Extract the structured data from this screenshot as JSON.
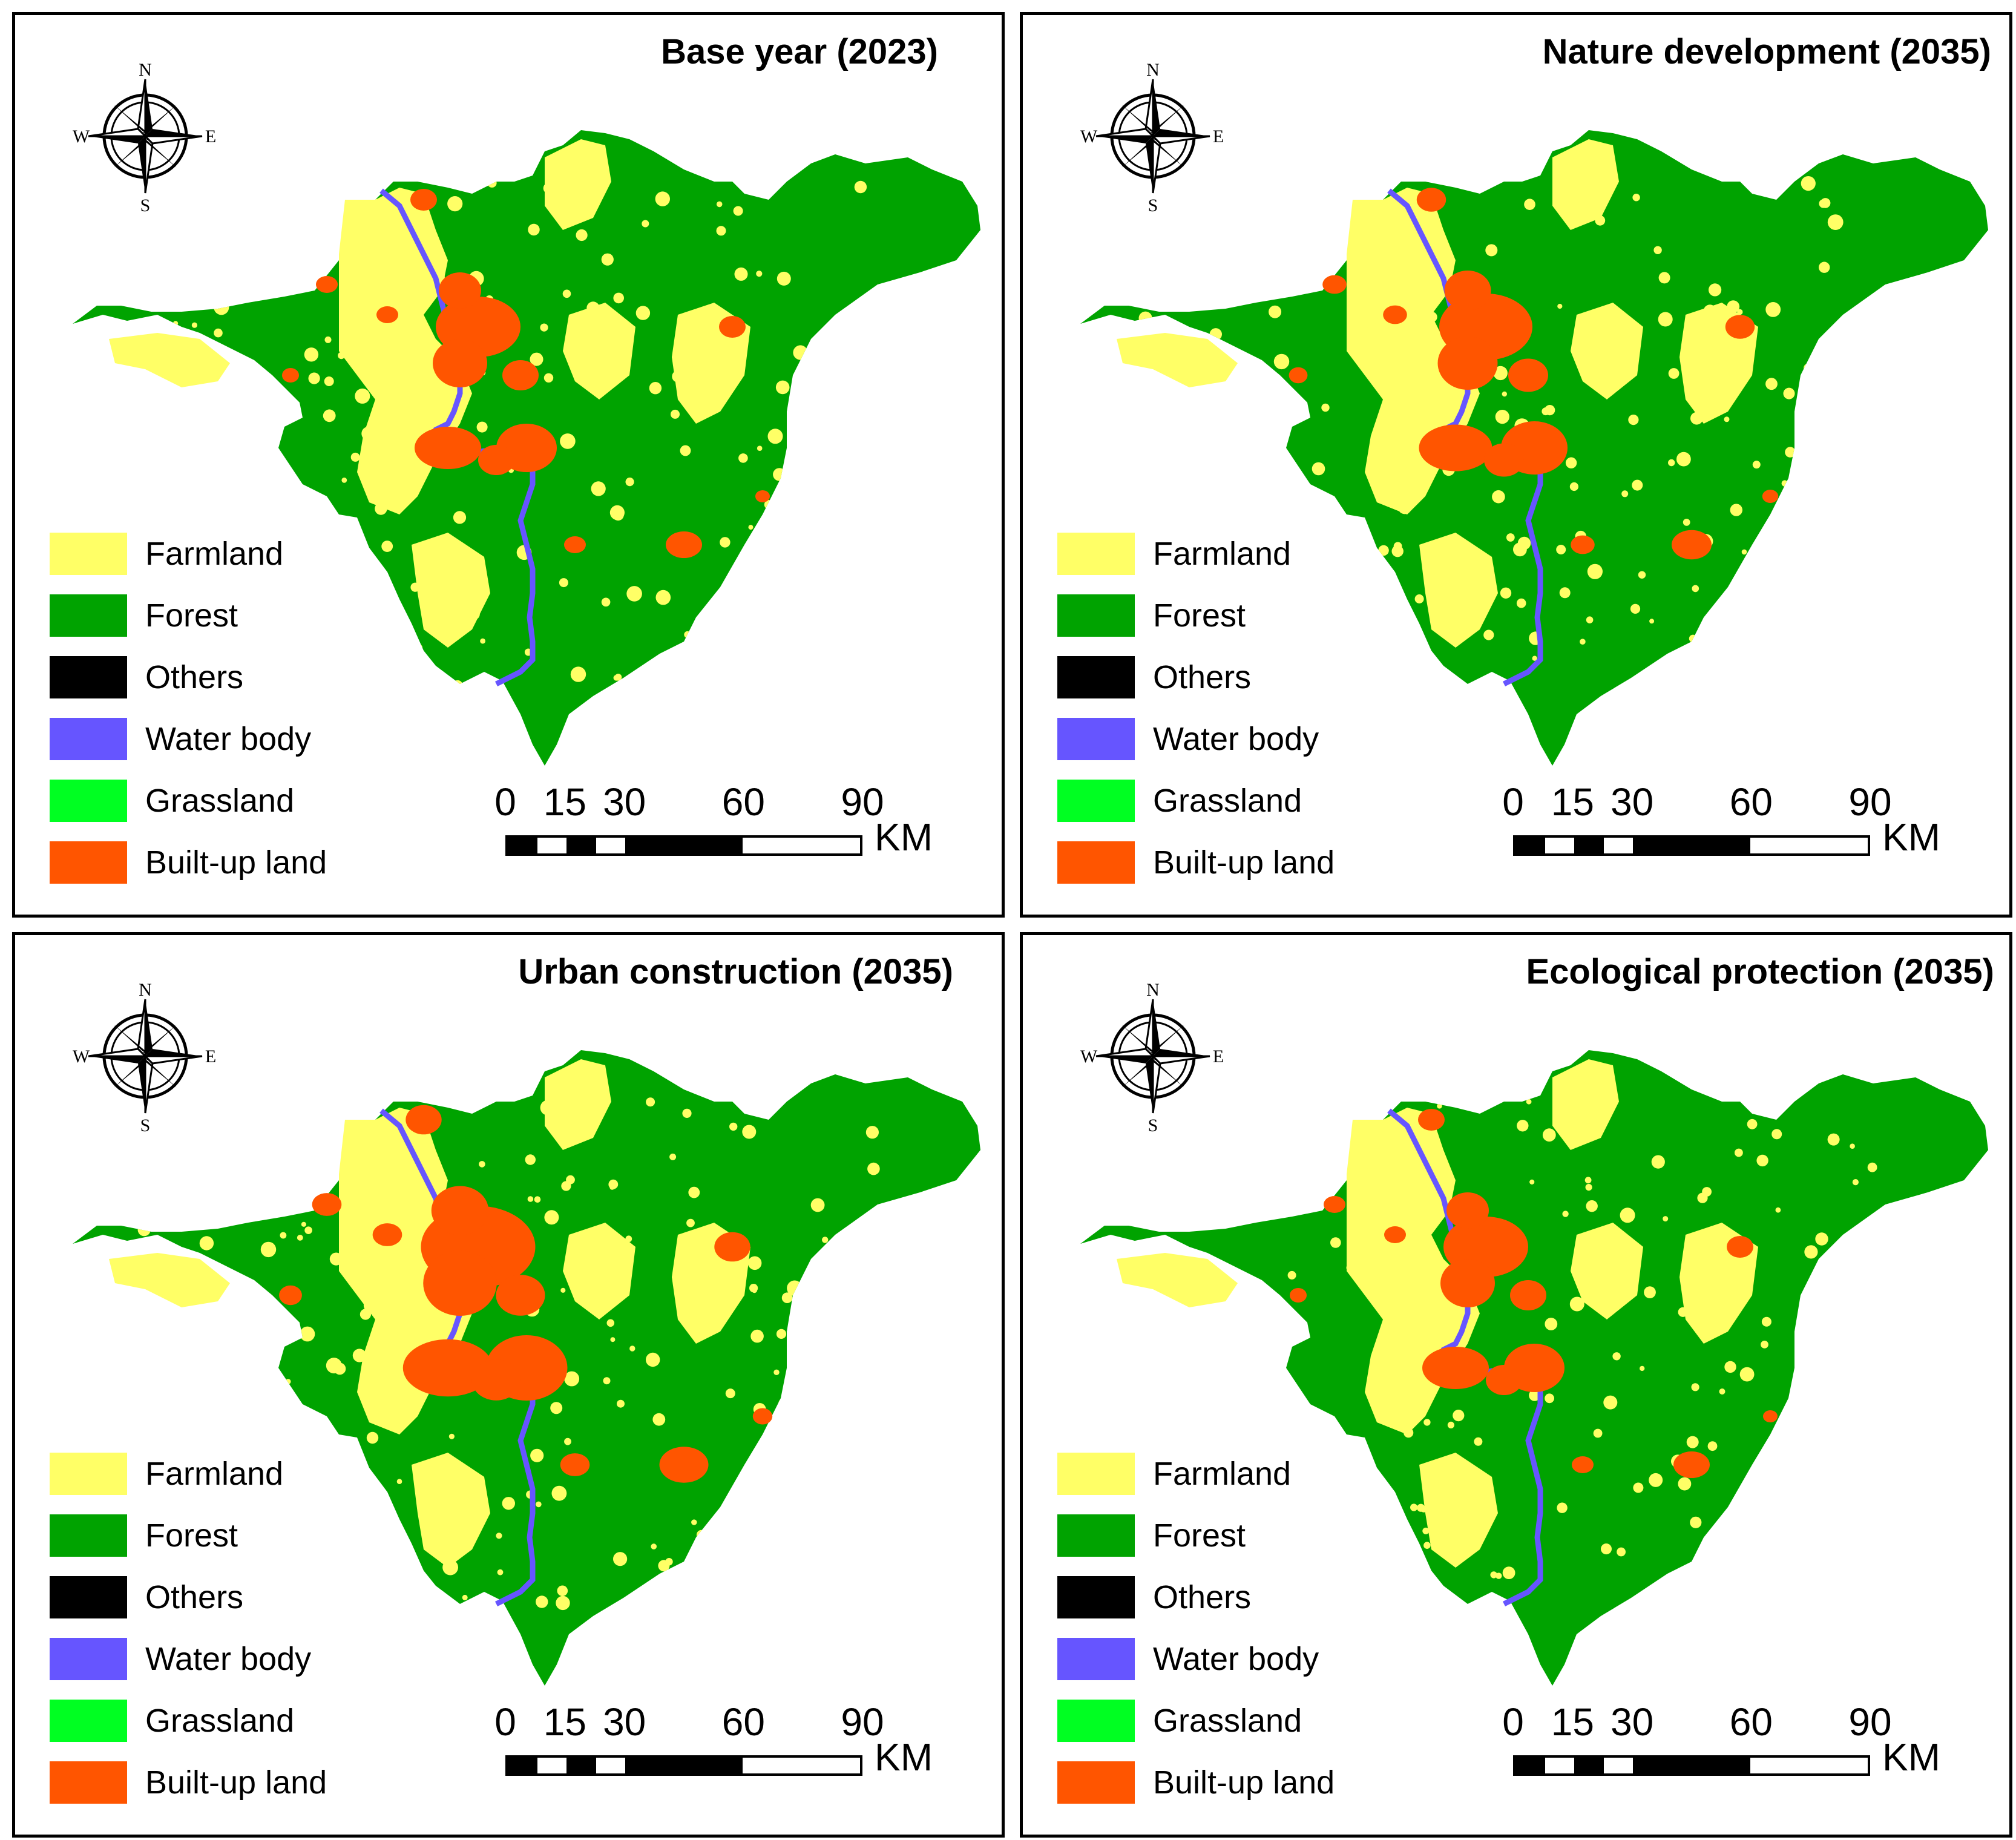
{
  "panels": [
    {
      "title": "Base year (2023)"
    },
    {
      "title": "Nature development (2035)"
    },
    {
      "title": "Urban construction (2035)"
    },
    {
      "title": "Ecological protection (2035)"
    }
  ],
  "compass": {
    "n": "N",
    "s": "S",
    "e": "E",
    "w": "W"
  },
  "legend": [
    {
      "label": "Farmland",
      "color": "#FFFF66"
    },
    {
      "label": "Forest",
      "color": "#00A300"
    },
    {
      "label": "Others",
      "color": "#000000"
    },
    {
      "label": "Water body",
      "color": "#6655FF"
    },
    {
      "label": "Grassland",
      "color": "#00FF22"
    },
    {
      "label": "Built-up land",
      "color": "#FF5500"
    }
  ],
  "scalebar": {
    "ticks": [
      "0",
      "15",
      "30",
      "60",
      "90"
    ],
    "tick_values": [
      0,
      15,
      30,
      60,
      90
    ],
    "unit": "KM"
  }
}
